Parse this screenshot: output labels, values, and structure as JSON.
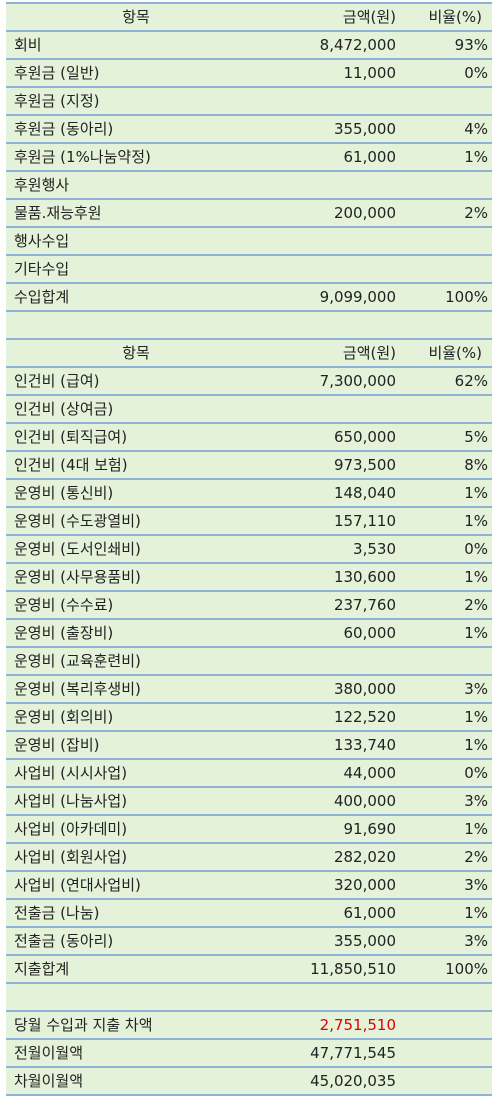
{
  "income": {
    "header": {
      "item": "항목",
      "amount": "금액(원)",
      "ratio": "비율(%)"
    },
    "rows": [
      {
        "item": "회비",
        "amount": "8,472,000",
        "ratio": "93%"
      },
      {
        "item": "후원금 (일반)",
        "amount": "11,000",
        "ratio": "0%"
      },
      {
        "item": "후원금 (지정)",
        "amount": "",
        "ratio": ""
      },
      {
        "item": "후원금 (동아리)",
        "amount": "355,000",
        "ratio": "4%"
      },
      {
        "item": "후원금 (1%나눔약정)",
        "amount": "61,000",
        "ratio": "1%"
      },
      {
        "item": "후원행사",
        "amount": "",
        "ratio": ""
      },
      {
        "item": "물품.재능후원",
        "amount": "200,000",
        "ratio": "2%"
      },
      {
        "item": "행사수입",
        "amount": "",
        "ratio": ""
      },
      {
        "item": "기타수입",
        "amount": "",
        "ratio": ""
      },
      {
        "item": "수입합계",
        "amount": "9,099,000",
        "ratio": "100%"
      }
    ]
  },
  "expense": {
    "header": {
      "item": "항목",
      "amount": "금액(원)",
      "ratio": "비율(%)"
    },
    "rows": [
      {
        "item": "인건비 (급여)",
        "amount": "7,300,000",
        "ratio": "62%"
      },
      {
        "item": "인건비 (상여금)",
        "amount": "",
        "ratio": ""
      },
      {
        "item": "인건비 (퇴직급여)",
        "amount": "650,000",
        "ratio": "5%"
      },
      {
        "item": "인건비 (4대 보험)",
        "amount": "973,500",
        "ratio": "8%"
      },
      {
        "item": "운영비 (통신비)",
        "amount": "148,040",
        "ratio": "1%"
      },
      {
        "item": "운영비 (수도광열비)",
        "amount": "157,110",
        "ratio": "1%"
      },
      {
        "item": "운영비 (도서인쇄비)",
        "amount": "3,530",
        "ratio": "0%"
      },
      {
        "item": "운영비 (사무용품비)",
        "amount": "130,600",
        "ratio": "1%"
      },
      {
        "item": "운영비 (수수료)",
        "amount": "237,760",
        "ratio": "2%"
      },
      {
        "item": "운영비 (출장비)",
        "amount": "60,000",
        "ratio": "1%"
      },
      {
        "item": "운영비 (교육훈련비)",
        "amount": "",
        "ratio": ""
      },
      {
        "item": "운영비 (복리후생비)",
        "amount": "380,000",
        "ratio": "3%"
      },
      {
        "item": "운영비 (회의비)",
        "amount": "122,520",
        "ratio": "1%"
      },
      {
        "item": "운영비 (잡비)",
        "amount": "133,740",
        "ratio": "1%"
      },
      {
        "item": "사업비 (시시사업)",
        "amount": "44,000",
        "ratio": "0%"
      },
      {
        "item": "사업비 (나눔사업)",
        "amount": "400,000",
        "ratio": "3%"
      },
      {
        "item": "사업비 (아카데미)",
        "amount": "91,690",
        "ratio": "1%"
      },
      {
        "item": "사업비 (회원사업)",
        "amount": "282,020",
        "ratio": "2%"
      },
      {
        "item": "사업비 (연대사업비)",
        "amount": "320,000",
        "ratio": "3%"
      },
      {
        "item": "전출금 (나눔)",
        "amount": "61,000",
        "ratio": "1%"
      },
      {
        "item": "전출금 (동아리)",
        "amount": "355,000",
        "ratio": "3%"
      },
      {
        "item": "지출합계",
        "amount": "11,850,510",
        "ratio": "100%"
      }
    ]
  },
  "summary": {
    "rows": [
      {
        "item": "당월 수입과 지출 차액",
        "amount": "2,751,510"
      },
      {
        "item": "전월이월액",
        "amount": "47,771,545"
      },
      {
        "item": "차월이월액",
        "amount": "45,020,035"
      }
    ],
    "difference_color": "#e00000"
  }
}
